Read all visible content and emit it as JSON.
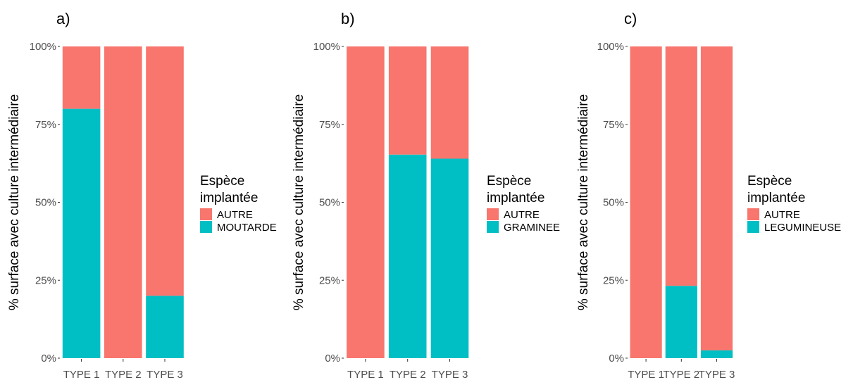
{
  "colors": {
    "autre": "#F8766D",
    "other_species": "#00BFC4"
  },
  "chart_data": [
    {
      "type": "bar",
      "stacked": true,
      "normalized": true,
      "panel_label": "a)",
      "categories": [
        "TYPE 1",
        "TYPE 2",
        "TYPE 3"
      ],
      "series": [
        {
          "name": "AUTRE",
          "values": [
            20,
            100,
            80
          ]
        },
        {
          "name": "MOUTARDE",
          "values": [
            80,
            0,
            20
          ]
        }
      ],
      "ylabel": "% surface avec culture intermédiaire",
      "xlabel": "",
      "ylim": [
        0,
        100
      ],
      "y_ticks": [
        "0%",
        "25%",
        "50%",
        "75%",
        "100%"
      ],
      "legend_title_lines": [
        "Espèce",
        "implantée"
      ],
      "legend_position": "right",
      "grid": false
    },
    {
      "type": "bar",
      "stacked": true,
      "normalized": true,
      "panel_label": "b)",
      "categories": [
        "TYPE 1",
        "TYPE 2",
        "TYPE 3"
      ],
      "series": [
        {
          "name": "AUTRE",
          "values": [
            100,
            34.7,
            36
          ]
        },
        {
          "name": "GRAMINEE",
          "values": [
            0,
            65.3,
            64
          ]
        }
      ],
      "ylabel": "% surface avec culture intermédiaire",
      "xlabel": "",
      "ylim": [
        0,
        100
      ],
      "y_ticks": [
        "0%",
        "25%",
        "50%",
        "75%",
        "100%"
      ],
      "legend_title_lines": [
        "Espèce",
        "implantée"
      ],
      "legend_position": "right",
      "grid": false
    },
    {
      "type": "bar",
      "stacked": true,
      "normalized": true,
      "panel_label": "c)",
      "categories": [
        "TYPE 1",
        "TYPE 2",
        "TYPE 3"
      ],
      "series": [
        {
          "name": "AUTRE",
          "values": [
            100,
            76.8,
            97.5
          ]
        },
        {
          "name": "LEGUMINEUSE",
          "values": [
            0,
            23.2,
            2.5
          ]
        }
      ],
      "ylabel": "% surface avec culture intermédiaire",
      "xlabel": "",
      "ylim": [
        0,
        100
      ],
      "y_ticks": [
        "0%",
        "25%",
        "50%",
        "75%",
        "100%"
      ],
      "legend_title_lines": [
        "Espèce",
        "implantée"
      ],
      "legend_position": "right",
      "grid": false
    }
  ]
}
